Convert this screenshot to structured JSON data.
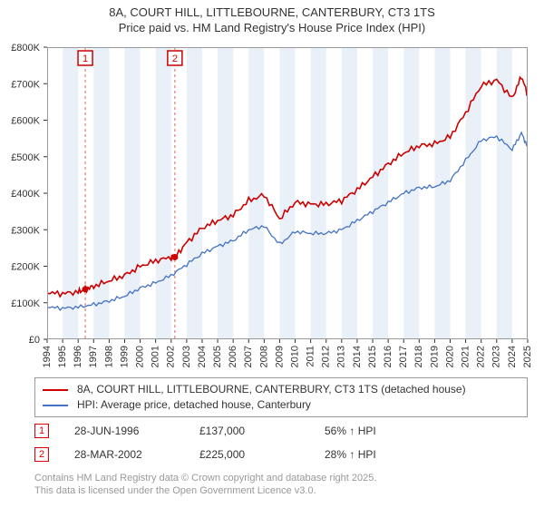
{
  "title": "8A, COURT HILL, LITTLEBOURNE, CANTERBURY, CT3 1TS",
  "subtitle": "Price paid vs. HM Land Registry's House Price Index (HPI)",
  "chart": {
    "type": "line",
    "background_color": "#ffffff",
    "plot_border_color": "#999999",
    "plot_border_width": 1,
    "alt_band_color": "#eaf0f8",
    "y_axis": {
      "min": 0,
      "max": 800,
      "step": 100,
      "prefix": "£",
      "suffix": "K",
      "label_fontsize": 11,
      "grid": false
    },
    "x_axis": {
      "years": [
        1994,
        1995,
        1996,
        1997,
        1998,
        1999,
        2000,
        2001,
        2002,
        2003,
        2004,
        2005,
        2006,
        2007,
        2008,
        2009,
        2010,
        2011,
        2012,
        2013,
        2014,
        2015,
        2016,
        2017,
        2018,
        2019,
        2020,
        2021,
        2022,
        2023,
        2024,
        2025
      ],
      "label_rotation": -90,
      "label_fontsize": 11
    },
    "series": [
      {
        "name": "property",
        "legend": "8A, COURT HILL, LITTLEBOURNE, CANTERBURY, CT3 1TS (detached house)",
        "color": "#cc0000",
        "line_width": 1.6,
        "values_by_year": {
          "1994": 127,
          "1995": 125,
          "1996": 130,
          "1996.46": 137,
          "1997": 145,
          "1998": 160,
          "1999": 175,
          "2000": 200,
          "2001": 215,
          "2002": 225,
          "2002.24": 225,
          "2003": 265,
          "2004": 305,
          "2005": 325,
          "2006": 340,
          "2007": 380,
          "2008": 395,
          "2009": 330,
          "2010": 375,
          "2011": 370,
          "2012": 370,
          "2013": 380,
          "2014": 410,
          "2015": 445,
          "2016": 480,
          "2017": 510,
          "2018": 530,
          "2019": 535,
          "2020": 555,
          "2021": 620,
          "2022": 695,
          "2023": 710,
          "2024": 660,
          "2024.6": 720,
          "2025": 670
        }
      },
      {
        "name": "hpi",
        "legend": "HPI: Average price, detached house, Canterbury",
        "color": "#4472c4",
        "line_width": 1.3,
        "values_by_year": {
          "1994": 88,
          "1995": 85,
          "1996": 88,
          "1997": 95,
          "1998": 105,
          "1999": 118,
          "2000": 140,
          "2001": 155,
          "2002": 175,
          "2003": 205,
          "2004": 235,
          "2005": 255,
          "2006": 270,
          "2007": 300,
          "2008": 310,
          "2009": 260,
          "2010": 295,
          "2011": 290,
          "2012": 290,
          "2013": 300,
          "2014": 325,
          "2015": 350,
          "2016": 375,
          "2017": 400,
          "2018": 415,
          "2019": 418,
          "2020": 435,
          "2021": 490,
          "2022": 545,
          "2023": 555,
          "2024": 520,
          "2024.6": 565,
          "2025": 525
        }
      }
    ],
    "sale_markers": [
      {
        "id": "1",
        "year_frac": 1996.46,
        "price_k": 137,
        "dash_color": "#d66",
        "dash": "3,3",
        "box_border": "#cc0000",
        "text_color": "#cc0000"
      },
      {
        "id": "2",
        "year_frac": 2002.24,
        "price_k": 225,
        "dash_color": "#d66",
        "dash": "3,3",
        "box_border": "#cc0000",
        "text_color": "#cc0000"
      }
    ]
  },
  "legend_box": {
    "border_color": "#999999",
    "entries": [
      {
        "color": "#cc0000",
        "label": "8A, COURT HILL, LITTLEBOURNE, CANTERBURY, CT3 1TS (detached house)"
      },
      {
        "color": "#4472c4",
        "label": "HPI: Average price, detached house, Canterbury"
      }
    ]
  },
  "marker_rows": [
    {
      "id": "1",
      "date": "28-JUN-1996",
      "price": "£137,000",
      "pct": "56%",
      "arrow": "↑",
      "suffix": "HPI"
    },
    {
      "id": "2",
      "date": "28-MAR-2002",
      "price": "£225,000",
      "pct": "28%",
      "arrow": "↑",
      "suffix": "HPI"
    }
  ],
  "footer": {
    "line1": "Contains HM Land Registry data © Crown copyright and database right 2025.",
    "line2": "This data is licensed under the Open Government Licence v3.0."
  }
}
